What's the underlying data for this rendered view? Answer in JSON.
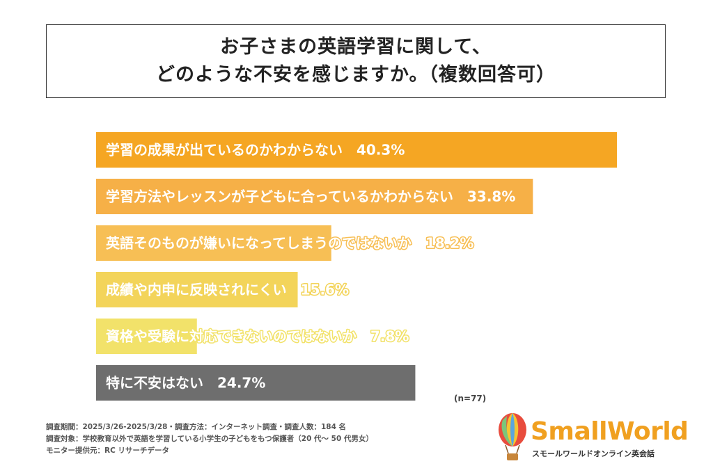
{
  "title": {
    "line1": "お子さまの英語学習に関して、",
    "line2": "どのような不安を感じますか。（複数回答可）"
  },
  "chart_data": {
    "type": "bar",
    "orientation": "horizontal",
    "categories": [
      "学習の成果が出ているのかわからない",
      "学習方法やレッスンが子どもに合っているかわからない",
      "英語そのものが嫌いになってしまうのではないか",
      "成績や内申に反映されにくい",
      "資格や受験に対応できないのではないか",
      "特に不安はない"
    ],
    "values": [
      40.3,
      33.8,
      18.2,
      15.6,
      7.8,
      24.7
    ],
    "value_labels": [
      "40.3%",
      "33.8%",
      "18.2%",
      "15.6%",
      "7.8%",
      "24.7%"
    ],
    "colors": [
      "#f5a623",
      "#f6b047",
      "#f7bf55",
      "#f3d45a",
      "#f2e26a",
      "#6e6e6e"
    ],
    "xlim": [
      0,
      40.3
    ],
    "unit": "%"
  },
  "sample_size": "(n=77)",
  "footer": {
    "line1": "調査期間：2025/3/26-2025/3/28・調査方法：インターネット調査・調査人数：184 名",
    "line2": "調査対象：学校教育以外で英語を学習している小学生の子どもをもつ保護者（20 代～ 50 代男女）",
    "line3": "モニター提供元：RC リサーチデータ"
  },
  "logo": {
    "name": "SmallWorld",
    "tagline": "スモールワールドオンライン英会話",
    "icon": "balloon-icon"
  }
}
